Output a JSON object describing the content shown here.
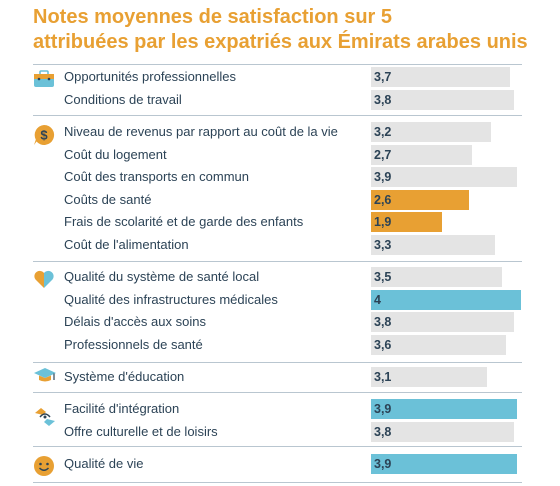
{
  "title": {
    "line1": "Notes moyennes de satisfaction sur 5",
    "line2": "attribuées par les expatriés aux Émirats arabes unis"
  },
  "colors": {
    "default_bar": "#e4e4e4",
    "low_bar": "#e8a033",
    "high_bar": "#6bc1d8"
  },
  "chart_data": {
    "type": "bar",
    "orientation": "horizontal",
    "xlim": [
      0,
      4
    ],
    "groups": [
      {
        "icon": "briefcase-icon",
        "items": [
          {
            "label": "Opportunités professionnelles",
            "value": 3.7,
            "value_label": "3,7",
            "highlight": "none"
          },
          {
            "label": "Conditions de travail",
            "value": 3.8,
            "value_label": "3,8",
            "highlight": "none"
          }
        ]
      },
      {
        "icon": "money-bubble-icon",
        "items": [
          {
            "label": "Niveau de revenus par rapport au coût de la vie",
            "value": 3.2,
            "value_label": "3,2",
            "highlight": "none"
          },
          {
            "label": "Coût du logement",
            "value": 2.7,
            "value_label": "2,7",
            "highlight": "none"
          },
          {
            "label": "Coût des transports en commun",
            "value": 3.9,
            "value_label": "3,9",
            "highlight": "none"
          },
          {
            "label": "Coûts de santé",
            "value": 2.6,
            "value_label": "2,6",
            "highlight": "low"
          },
          {
            "label": "Frais de scolarité et de garde des enfants",
            "value": 1.9,
            "value_label": "1,9",
            "highlight": "low"
          },
          {
            "label": "Coût de l'alimentation",
            "value": 3.3,
            "value_label": "3,3",
            "highlight": "none"
          }
        ]
      },
      {
        "icon": "heart-icon",
        "items": [
          {
            "label": "Qualité du système de santé local",
            "value": 3.5,
            "value_label": "3,5",
            "highlight": "none"
          },
          {
            "label": "Qualité des infrastructures médicales",
            "value": 4.0,
            "value_label": "4",
            "highlight": "high"
          },
          {
            "label": "Délais d'accès aux soins",
            "value": 3.8,
            "value_label": "3,8",
            "highlight": "none"
          },
          {
            "label": "Professionnels de santé",
            "value": 3.6,
            "value_label": "3,6",
            "highlight": "none"
          }
        ]
      },
      {
        "icon": "graduation-cap-icon",
        "items": [
          {
            "label": "Système d'éducation",
            "value": 3.1,
            "value_label": "3,1",
            "highlight": "none"
          }
        ]
      },
      {
        "icon": "handshake-icon",
        "items": [
          {
            "label": "Facilité d'intégration",
            "value": 3.9,
            "value_label": "3,9",
            "highlight": "high"
          },
          {
            "label": "Offre culturelle et de loisirs",
            "value": 3.8,
            "value_label": "3,8",
            "highlight": "none"
          }
        ]
      },
      {
        "icon": "smiley-icon",
        "items": [
          {
            "label": "Qualité de vie",
            "value": 3.9,
            "value_label": "3,9",
            "highlight": "high"
          }
        ]
      }
    ]
  }
}
